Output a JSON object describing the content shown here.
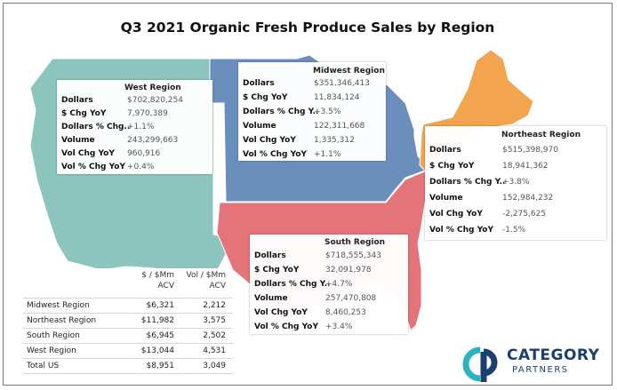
{
  "chart_data": {
    "type": "map",
    "title": "Q3 2021 Organic Fresh Produce Sales by Region",
    "colors": {
      "West Region": "#8cc4be",
      "Midwest Region": "#6b8fbd",
      "Northeast Region": "#f3a44e",
      "South Region": "#e5737a"
    },
    "regions": [
      {
        "name": "West Region",
        "metrics": [
          {
            "label": "Dollars",
            "value": "$702,820,254"
          },
          {
            "label": "$ Chg YoY",
            "value": "7,970,389"
          },
          {
            "label": "Dollars % Chg..",
            "value": "+1.1%"
          },
          {
            "label": "Volume",
            "value": "243,299,663"
          },
          {
            "label": "Vol Chg YoY",
            "value": "960,916"
          },
          {
            "label": "Vol % Chg YoY",
            "value": "+0.4%"
          }
        ]
      },
      {
        "name": "Midwest Region",
        "metrics": [
          {
            "label": "Dollars",
            "value": "$351,346,413"
          },
          {
            "label": "$ Chg YoY",
            "value": "11,834,124"
          },
          {
            "label": "Dollars % Chg Y..",
            "value": "+3.5%"
          },
          {
            "label": "Volume",
            "value": "122,311,668"
          },
          {
            "label": "Vol Chg YoY",
            "value": "1,335,312"
          },
          {
            "label": "Vol % Chg YoY",
            "value": "+1.1%"
          }
        ]
      },
      {
        "name": "Northeast Region",
        "metrics": [
          {
            "label": "Dollars",
            "value": "$515,398,970"
          },
          {
            "label": "$ Chg YoY",
            "value": "18,941,362"
          },
          {
            "label": "Dollars % Chg Y..",
            "value": "+3.8%"
          },
          {
            "label": "Volume",
            "value": "152,984,232"
          },
          {
            "label": "Vol Chg YoY",
            "value": "-2,275,625"
          },
          {
            "label": "Vol % Chg YoY",
            "value": "-1.5%"
          }
        ]
      },
      {
        "name": "South Region",
        "metrics": [
          {
            "label": "Dollars",
            "value": "$718,555,343"
          },
          {
            "label": "$ Chg YoY",
            "value": "32,091,978"
          },
          {
            "label": "Dollars % Chg Y..",
            "value": "+4.7%"
          },
          {
            "label": "Volume",
            "value": "257,470,808"
          },
          {
            "label": "Vol Chg YoY",
            "value": "8,460,253"
          },
          {
            "label": "Vol % Chg YoY",
            "value": "+3.4%"
          }
        ]
      }
    ],
    "acv_table": {
      "columns": [
        "$ / $Mm ACV",
        "Vol / $Mm ACV"
      ],
      "col1_lines": [
        "$ / $Mm",
        "ACV"
      ],
      "col2_lines": [
        "Vol / $Mm",
        "ACV"
      ],
      "rows": [
        {
          "region": "Midwest Region",
          "dollars_per_mm_acv": "$6,321",
          "vol_per_mm_acv": "2,212"
        },
        {
          "region": "Northeast Region",
          "dollars_per_mm_acv": "$11,982",
          "vol_per_mm_acv": "3,575"
        },
        {
          "region": "South Region",
          "dollars_per_mm_acv": "$6,945",
          "vol_per_mm_acv": "2,502"
        },
        {
          "region": "West Region",
          "dollars_per_mm_acv": "$13,044",
          "vol_per_mm_acv": "4,531"
        },
        {
          "region": "Total US",
          "dollars_per_mm_acv": "$8,951",
          "vol_per_mm_acv": "3,049"
        }
      ]
    }
  },
  "logo": {
    "word1": "CATEGORY",
    "word2": "PARTNERS",
    "mark": "CP"
  }
}
